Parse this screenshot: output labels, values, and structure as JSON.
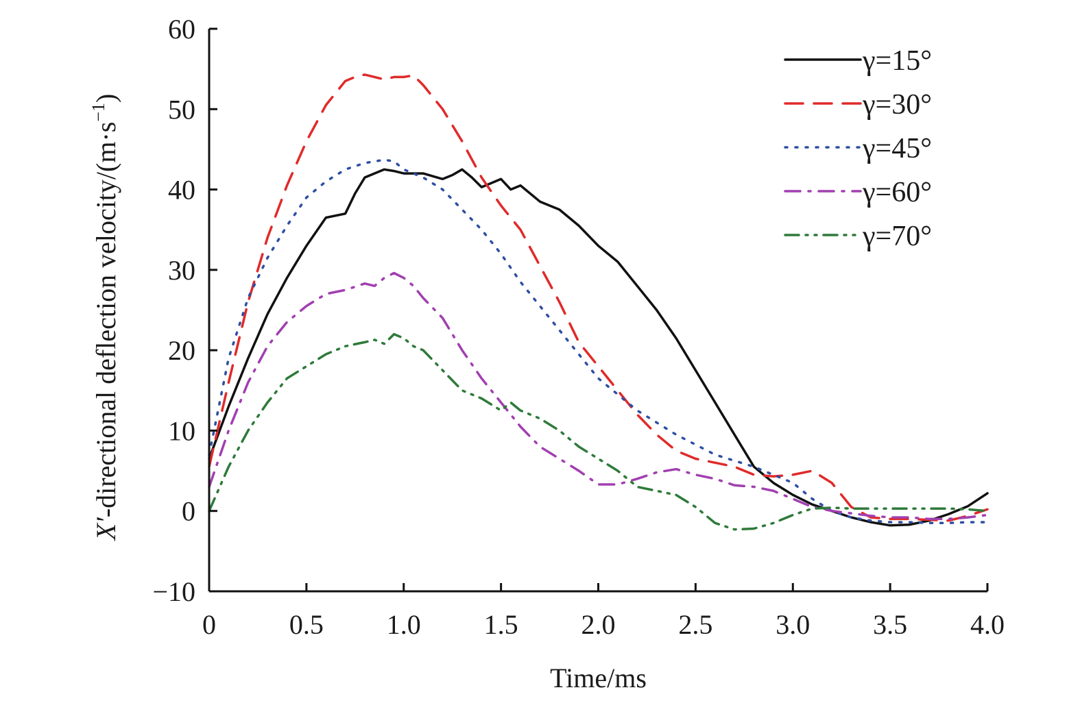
{
  "chart_data": {
    "type": "line",
    "title": "",
    "xlabel": "Time/ms",
    "ylabel_prefix": "X′",
    "ylabel": "-directional deflection velocity/(m·s",
    "ylabel_sup": "−1",
    "ylabel_suffix": ")",
    "xlim": [
      0,
      4.0
    ],
    "ylim": [
      -10,
      60
    ],
    "x_ticks": [
      0,
      0.5,
      1.0,
      1.5,
      2.0,
      2.5,
      3.0,
      3.5,
      4.0
    ],
    "x_tick_labels": [
      "0",
      "0.5",
      "1.0",
      "1.5",
      "2.0",
      "2.5",
      "3.0",
      "3.5",
      "4.0"
    ],
    "y_ticks": [
      -10,
      0,
      10,
      20,
      30,
      40,
      50,
      60
    ],
    "y_tick_labels": [
      "−10",
      "0",
      "10",
      "20",
      "30",
      "40",
      "50",
      "60"
    ],
    "grid": false,
    "legend_position": "top-right",
    "series": [
      {
        "name": "γ=15°",
        "color": "#111111",
        "dash": "solid",
        "x": [
          0,
          0.1,
          0.2,
          0.3,
          0.4,
          0.5,
          0.6,
          0.7,
          0.75,
          0.8,
          0.85,
          0.9,
          0.95,
          1.0,
          1.1,
          1.2,
          1.25,
          1.3,
          1.35,
          1.4,
          1.45,
          1.5,
          1.55,
          1.6,
          1.7,
          1.8,
          1.9,
          2.0,
          2.1,
          2.2,
          2.3,
          2.4,
          2.5,
          2.6,
          2.7,
          2.8,
          2.9,
          3.0,
          3.1,
          3.2,
          3.3,
          3.4,
          3.5,
          3.6,
          3.7,
          3.8,
          3.9,
          4.0
        ],
        "y": [
          6.5,
          13,
          19,
          24.5,
          29,
          33,
          36.5,
          37,
          39.5,
          41.5,
          42,
          42.5,
          42.3,
          42,
          42,
          41.3,
          41.8,
          42.5,
          41.5,
          40.3,
          40.8,
          41.3,
          40,
          40.5,
          38.5,
          37.5,
          35.5,
          33,
          31,
          28,
          25,
          21.5,
          17.5,
          13.5,
          9.5,
          5.5,
          3.5,
          2,
          0.8,
          0,
          -0.8,
          -1.4,
          -1.8,
          -1.7,
          -1.2,
          -0.4,
          0.6,
          2.2
        ]
      },
      {
        "name": "γ=30°",
        "color": "#e02a2a",
        "dash": "dashed",
        "x": [
          0,
          0.1,
          0.2,
          0.3,
          0.4,
          0.5,
          0.6,
          0.7,
          0.75,
          0.8,
          0.85,
          0.9,
          0.95,
          1.0,
          1.05,
          1.1,
          1.2,
          1.3,
          1.4,
          1.5,
          1.6,
          1.7,
          1.8,
          1.9,
          2.0,
          2.1,
          2.2,
          2.3,
          2.4,
          2.5,
          2.6,
          2.7,
          2.8,
          2.9,
          3.0,
          3.1,
          3.2,
          3.3,
          3.4,
          3.5,
          3.6,
          3.7,
          3.8,
          3.9,
          4.0
        ],
        "y": [
          5.5,
          16,
          26,
          34,
          40.5,
          46,
          50.5,
          53.5,
          54,
          54.3,
          54,
          53.7,
          54,
          54,
          54.2,
          53,
          50,
          46,
          41.5,
          38,
          35,
          30.5,
          26,
          21,
          18,
          15,
          12,
          9.5,
          7.5,
          6.5,
          6,
          5.5,
          4.5,
          4.3,
          4.5,
          5,
          3.5,
          0.5,
          -0.8,
          -1,
          -1,
          -1.1,
          -1.2,
          -0.6,
          0.2
        ]
      },
      {
        "name": "γ=45°",
        "color": "#2e4fa3",
        "dash": "dotted",
        "x": [
          0,
          0.1,
          0.2,
          0.3,
          0.4,
          0.5,
          0.6,
          0.7,
          0.8,
          0.9,
          0.95,
          1.0,
          1.1,
          1.2,
          1.3,
          1.4,
          1.5,
          1.6,
          1.7,
          1.8,
          1.9,
          2.0,
          2.2,
          2.4,
          2.6,
          2.8,
          3.0,
          3.1,
          3.2,
          3.3,
          3.4,
          3.5,
          3.6,
          3.7,
          3.8,
          3.9,
          4.0
        ],
        "y": [
          7,
          19,
          26.5,
          31.5,
          35.5,
          39,
          41,
          42.5,
          43.3,
          43.7,
          43.5,
          42.5,
          41.5,
          40,
          37.5,
          35,
          32,
          28.5,
          25.5,
          22.5,
          19.5,
          16.5,
          12.5,
          9.5,
          7,
          5.5,
          3.5,
          1.5,
          0,
          -0.8,
          -1.2,
          -1.4,
          -1.4,
          -1.5,
          -1.5,
          -1.4,
          -1.4
        ]
      },
      {
        "name": "γ=60°",
        "color": "#a13fb0",
        "dash": "dashdot",
        "x": [
          0,
          0.1,
          0.2,
          0.3,
          0.4,
          0.5,
          0.6,
          0.7,
          0.8,
          0.85,
          0.9,
          0.95,
          1.0,
          1.05,
          1.1,
          1.2,
          1.3,
          1.4,
          1.5,
          1.6,
          1.7,
          1.8,
          1.9,
          2.0,
          2.1,
          2.2,
          2.3,
          2.4,
          2.5,
          2.6,
          2.7,
          2.8,
          2.9,
          3.0,
          3.1,
          3.2,
          3.3,
          3.4,
          3.5,
          3.6,
          3.7,
          3.8,
          3.9,
          4.0
        ],
        "y": [
          3,
          10,
          16,
          20.5,
          23.5,
          25.5,
          27,
          27.5,
          28.3,
          28,
          29,
          29.6,
          29,
          28,
          26.5,
          24,
          20,
          16.5,
          13.5,
          10.5,
          8,
          6.5,
          5,
          3.3,
          3.3,
          4,
          4.8,
          5.2,
          4.5,
          4,
          3.2,
          3,
          2.5,
          1.5,
          0.5,
          0,
          -0.3,
          -0.6,
          -0.8,
          -0.8,
          -1,
          -1,
          -0.8,
          -0.5
        ]
      },
      {
        "name": "γ=70°",
        "color": "#2e7a3a",
        "dash": "dashdotdot",
        "x": [
          0,
          0.1,
          0.2,
          0.3,
          0.4,
          0.5,
          0.6,
          0.7,
          0.8,
          0.85,
          0.9,
          0.95,
          1.0,
          1.05,
          1.1,
          1.2,
          1.3,
          1.4,
          1.5,
          1.55,
          1.6,
          1.7,
          1.8,
          1.9,
          2.0,
          2.1,
          2.2,
          2.3,
          2.4,
          2.5,
          2.6,
          2.7,
          2.8,
          2.9,
          3.0,
          3.1,
          3.2,
          3.3,
          3.4,
          3.5,
          3.6,
          3.7,
          3.8,
          3.9,
          4.0
        ],
        "y": [
          0,
          5.5,
          10,
          13.5,
          16.5,
          18,
          19.5,
          20.5,
          21,
          21.3,
          20.8,
          22,
          21.5,
          20.5,
          20,
          17.5,
          15,
          14,
          12.5,
          13.5,
          12.5,
          11.5,
          10,
          8,
          6.5,
          5,
          3,
          2.5,
          2,
          0.5,
          -1.5,
          -2.3,
          -2.2,
          -1.5,
          -0.5,
          0.3,
          0.4,
          0.3,
          0.3,
          0.3,
          0.3,
          0.3,
          0.3,
          0.2,
          0
        ]
      }
    ]
  }
}
